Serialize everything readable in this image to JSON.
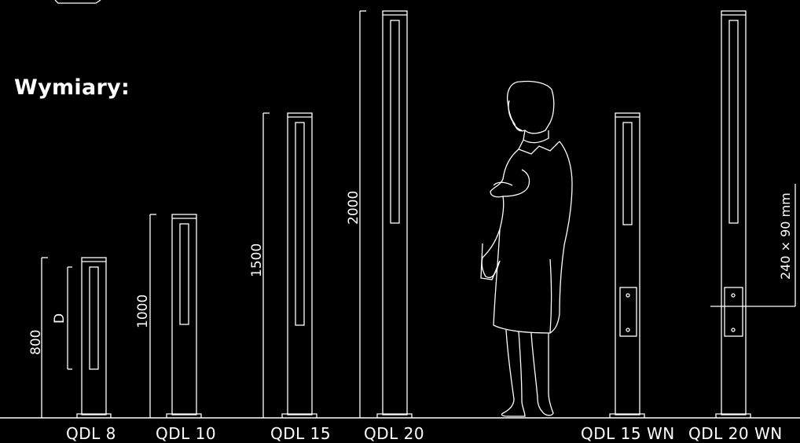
{
  "title": "Wymiary:",
  "colors": {
    "background": "#000000",
    "line": "#ffffff"
  },
  "models": [
    {
      "name": "QDL 8",
      "height_label": "800",
      "extra_label": "D",
      "wall_box": false
    },
    {
      "name": "QDL 10",
      "height_label": "1000",
      "wall_box": false
    },
    {
      "name": "QDL 15",
      "height_label": "1500",
      "wall_box": false
    },
    {
      "name": "QDL 20",
      "height_label": "2000",
      "wall_box": false
    },
    {
      "name": "QDL 15 WN",
      "wall_box": true
    },
    {
      "name": "QDL 20 WN",
      "wall_box": true,
      "box_label": "240 × 90 mm"
    }
  ],
  "figure": "person-silhouette"
}
